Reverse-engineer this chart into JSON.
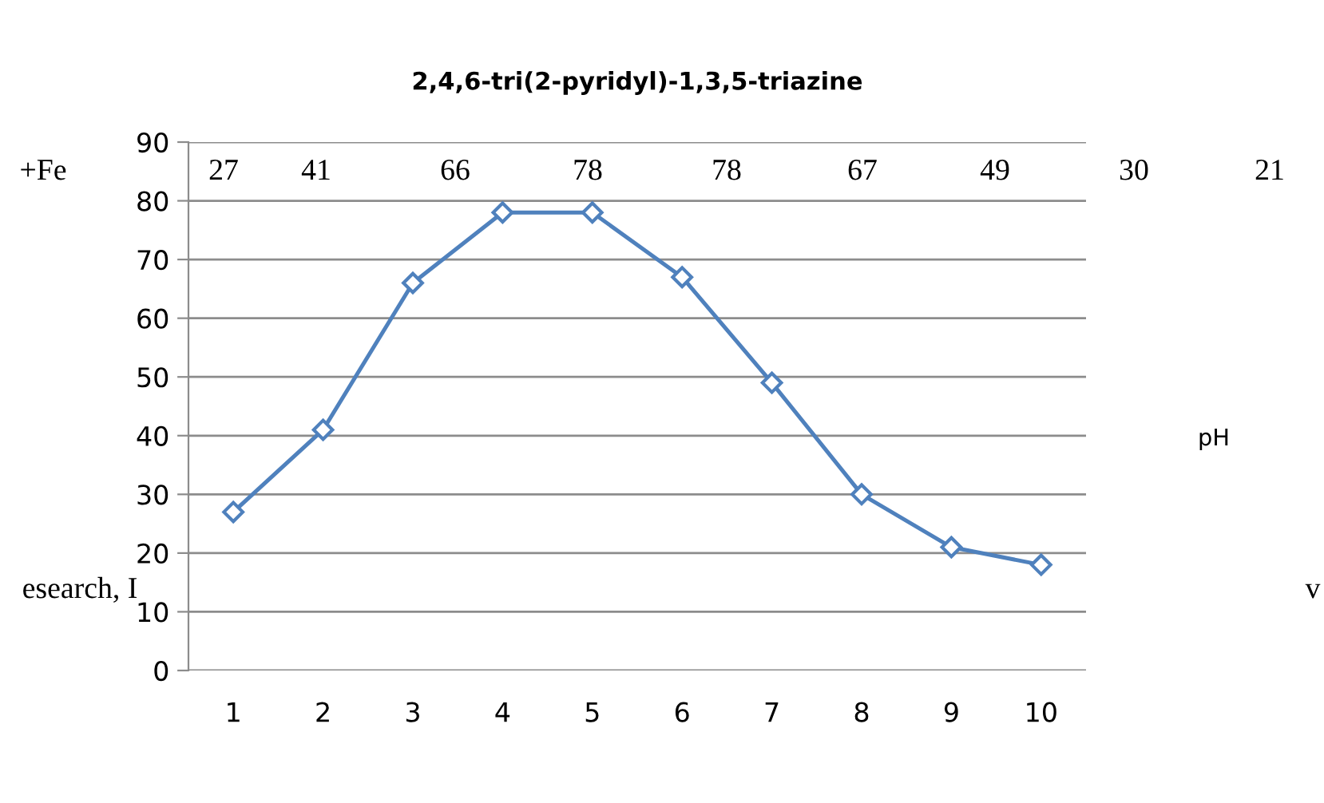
{
  "chart_data": {
    "type": "line",
    "title": "2,4,6-tri(2-pyridyl)-1,3,5-triazine",
    "categories": [
      "1",
      "2",
      "3",
      "4",
      "5",
      "6",
      "7",
      "8",
      "9",
      "10"
    ],
    "series": [
      {
        "color": "#4f81bd",
        "values": [
          27,
          41,
          66,
          78,
          78,
          67,
          49,
          30,
          21,
          18
        ]
      }
    ],
    "ylim": [
      0,
      90
    ],
    "yticks": [
      0,
      10,
      20,
      30,
      40,
      50,
      60,
      70,
      80,
      90
    ],
    "grid": "y",
    "marker": "diamond",
    "line_style": "solid",
    "legend": false,
    "annotations": [
      "pH",
      "+Fe",
      "27",
      "41",
      "66",
      "78",
      "78",
      "67",
      "49",
      "30",
      "21",
      "esearch, I",
      "v"
    ]
  }
}
